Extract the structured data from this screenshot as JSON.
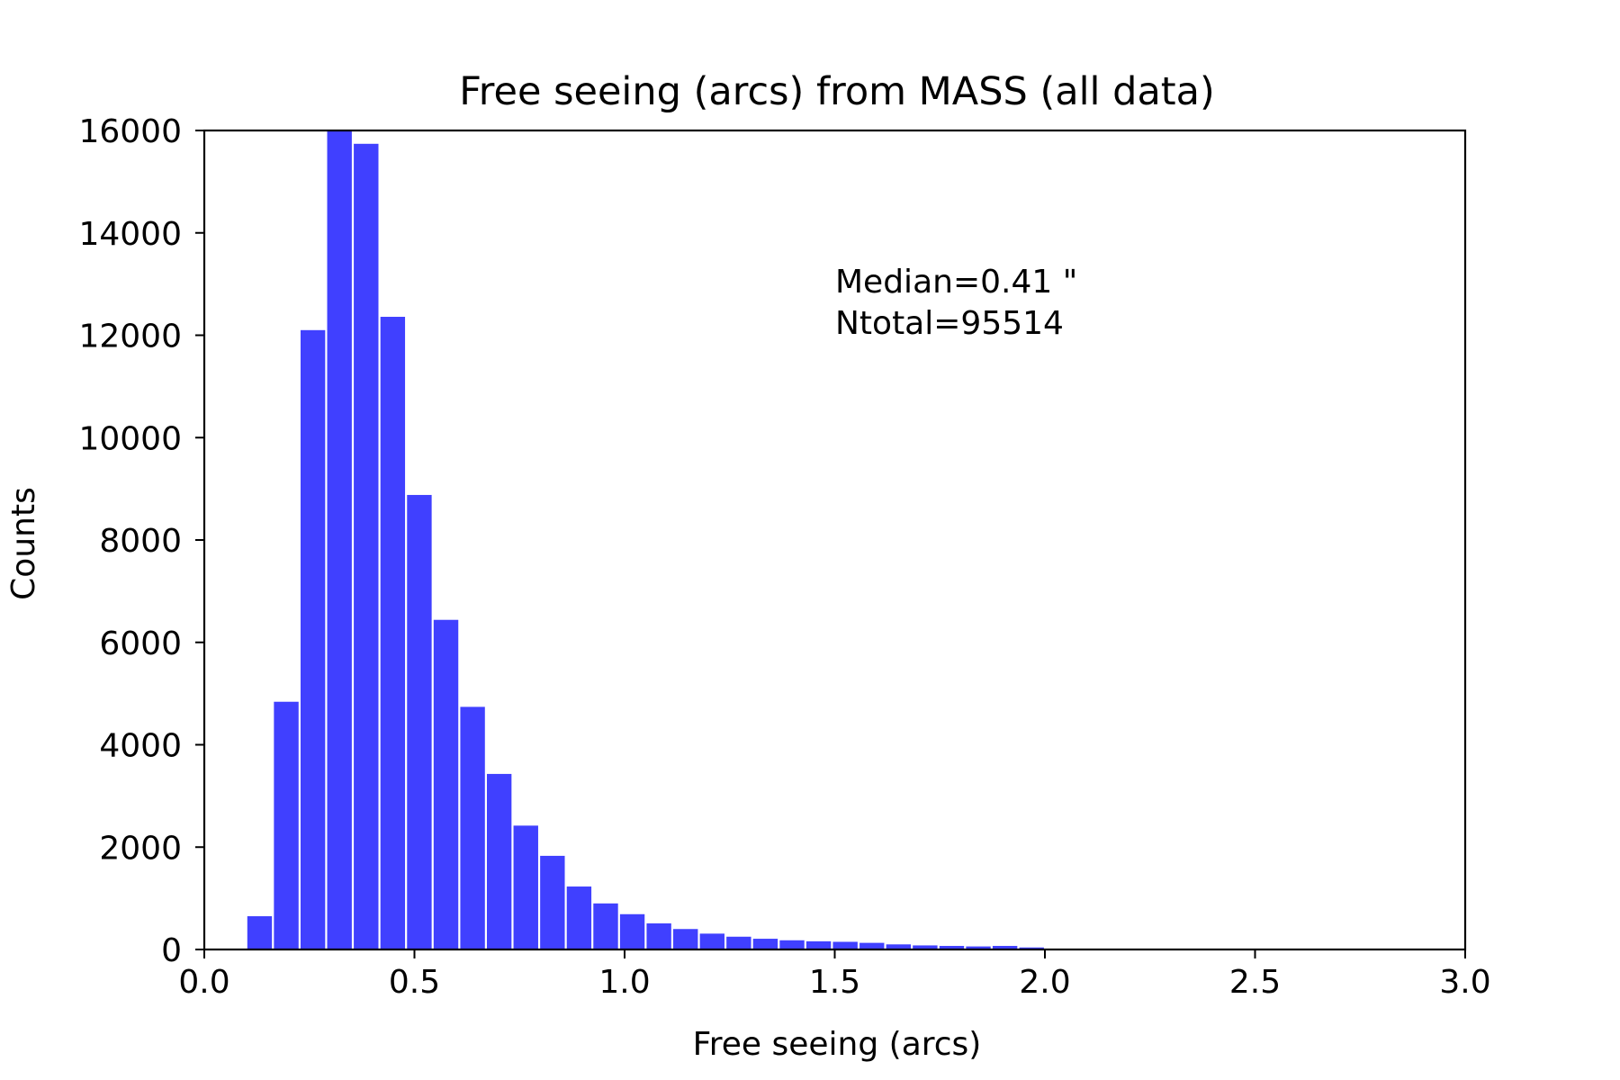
{
  "chart_data": {
    "type": "bar",
    "title": "Free seeing (arcs) from MASS (all data)",
    "xlabel": "Free seeing (arcs)",
    "ylabel": "Counts",
    "xlim": [
      0.0,
      3.0
    ],
    "ylim": [
      0,
      16000
    ],
    "xticks": [
      "0.0",
      "0.5",
      "1.0",
      "1.5",
      "2.0",
      "2.5",
      "3.0"
    ],
    "yticks": [
      "0",
      "2000",
      "4000",
      "6000",
      "8000",
      "10000",
      "12000",
      "14000",
      "16000"
    ],
    "grid": false,
    "bar_color": "#4040ff",
    "bin_edges": [
      0.1,
      0.1633,
      0.2267,
      0.29,
      0.3533,
      0.4167,
      0.48,
      0.5433,
      0.6067,
      0.67,
      0.7333,
      0.7967,
      0.86,
      0.9233,
      0.9867,
      1.05,
      1.1133,
      1.1767,
      1.24,
      1.3033,
      1.3667,
      1.43,
      1.4933,
      1.5567,
      1.62,
      1.6833,
      1.7467,
      1.81,
      1.8733,
      1.9367,
      2.0
    ],
    "values": [
      650,
      4840,
      12100,
      16000,
      15740,
      12360,
      8880,
      6440,
      4740,
      3430,
      2420,
      1830,
      1230,
      900,
      690,
      510,
      400,
      310,
      250,
      210,
      180,
      160,
      150,
      130,
      100,
      80,
      70,
      60,
      70,
      40
    ],
    "annotations": [
      "Median=0.41 \"",
      "Ntotal=95514"
    ]
  }
}
